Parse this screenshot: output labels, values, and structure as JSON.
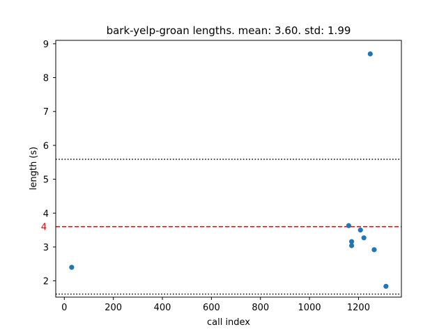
{
  "chart_data": {
    "type": "scatter",
    "title": "bark-yelp-groan lengths. mean: 3.60. std: 1.99",
    "xlabel": "call index",
    "ylabel": "length (s)",
    "xlim": [
      -35,
      1375
    ],
    "ylim": [
      1.52,
      9.1
    ],
    "xticks": [
      0,
      200,
      400,
      600,
      800,
      1000,
      1200
    ],
    "yticks": [
      2,
      3,
      4,
      5,
      6,
      7,
      8,
      9
    ],
    "grid": false,
    "points": [
      {
        "x": 30,
        "y": 2.4
      },
      {
        "x": 1160,
        "y": 3.63
      },
      {
        "x": 1172,
        "y": 3.16
      },
      {
        "x": 1172,
        "y": 3.04
      },
      {
        "x": 1208,
        "y": 3.5
      },
      {
        "x": 1222,
        "y": 3.27
      },
      {
        "x": 1248,
        "y": 8.7
      },
      {
        "x": 1264,
        "y": 2.92
      },
      {
        "x": 1312,
        "y": 1.84
      }
    ],
    "hlines": [
      {
        "y": 3.6,
        "style": "dashed",
        "color": "#ff0000"
      },
      {
        "y": 5.59,
        "style": "dotted",
        "color": "#000000"
      },
      {
        "y": 1.61,
        "style": "dotted",
        "color": "#000000"
      }
    ],
    "annotations": [
      {
        "text": "4",
        "y": 3.6,
        "color": "#ff0000"
      }
    ],
    "marker_color": "#1f77b4"
  }
}
